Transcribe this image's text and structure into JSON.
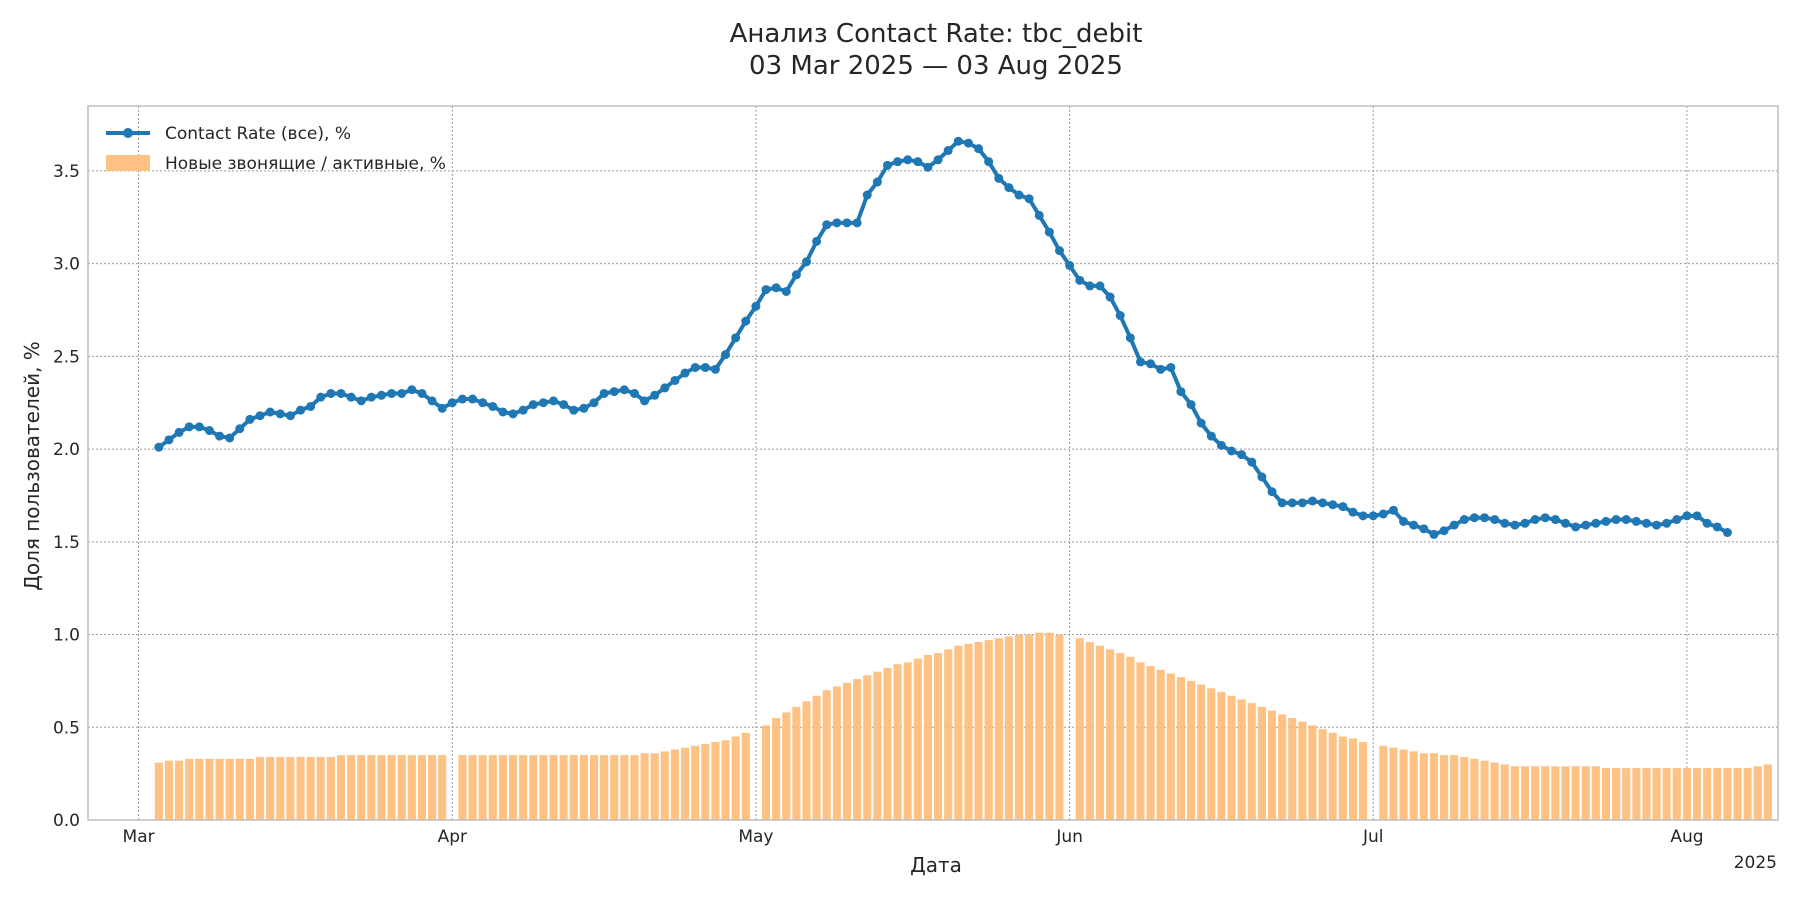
{
  "chart_data": {
    "type": "line",
    "title": "Анализ Contact Rate: tbc_debit",
    "subtitle": "03 Mar 2025 — 03 Aug 2025",
    "xlabel": "Дата",
    "ylabel": "Доля пользователей, %",
    "x_offset_label": "2025",
    "xlim": [
      "2025-02-24",
      "2025-08-10"
    ],
    "ylim": [
      0,
      3.85
    ],
    "y_ticks": [
      "0.0",
      "0.5",
      "1.0",
      "1.5",
      "2.0",
      "2.5",
      "3.0",
      "3.5"
    ],
    "x_ticks": [
      {
        "date": "2025-03-01",
        "label": "Mar"
      },
      {
        "date": "2025-04-01",
        "label": "Apr"
      },
      {
        "date": "2025-05-01",
        "label": "May"
      },
      {
        "date": "2025-06-01",
        "label": "Jun"
      },
      {
        "date": "2025-07-01",
        "label": "Jul"
      },
      {
        "date": "2025-08-01",
        "label": "Aug"
      }
    ],
    "grid": true,
    "legend_position": "top-left",
    "x_start": "2025-03-03",
    "series": [
      {
        "name": "Contact Rate (все), %",
        "kind": "line",
        "color": "#1f77b4",
        "values": [
          2.01,
          2.05,
          2.09,
          2.12,
          2.12,
          2.1,
          2.07,
          2.06,
          2.11,
          2.16,
          2.18,
          2.2,
          2.19,
          2.18,
          2.21,
          2.23,
          2.28,
          2.3,
          2.3,
          2.28,
          2.26,
          2.28,
          2.29,
          2.3,
          2.3,
          2.32,
          2.3,
          2.26,
          2.22,
          2.25,
          2.27,
          2.27,
          2.25,
          2.23,
          2.2,
          2.19,
          2.21,
          2.24,
          2.25,
          2.26,
          2.24,
          2.21,
          2.22,
          2.25,
          2.3,
          2.31,
          2.32,
          2.3,
          2.26,
          2.29,
          2.33,
          2.37,
          2.41,
          2.44,
          2.44,
          2.43,
          2.51,
          2.6,
          2.69,
          2.77,
          2.86,
          2.87,
          2.85,
          2.94,
          3.01,
          3.12,
          3.21,
          3.22,
          3.22,
          3.22,
          3.37,
          3.44,
          3.53,
          3.55,
          3.56,
          3.55,
          3.52,
          3.56,
          3.61,
          3.66,
          3.65,
          3.62,
          3.55,
          3.46,
          3.41,
          3.37,
          3.35,
          3.26,
          3.17,
          3.07,
          2.99,
          2.91,
          2.88,
          2.88,
          2.82,
          2.72,
          2.6,
          2.47,
          2.46,
          2.43,
          2.44,
          2.31,
          2.24,
          2.14,
          2.07,
          2.02,
          1.99,
          1.97,
          1.93,
          1.85,
          1.77,
          1.71,
          1.71,
          1.71,
          1.72,
          1.71,
          1.7,
          1.69,
          1.66,
          1.64,
          1.64,
          1.65,
          1.67,
          1.61,
          1.59,
          1.57,
          1.54,
          1.56,
          1.59,
          1.62,
          1.63,
          1.63,
          1.62,
          1.6,
          1.59,
          1.6,
          1.62,
          1.63,
          1.62,
          1.6,
          1.58,
          1.59,
          1.6,
          1.61,
          1.62,
          1.62,
          1.61,
          1.6,
          1.59,
          1.6,
          1.62,
          1.64,
          1.64,
          1.6,
          1.58,
          1.55
        ]
      },
      {
        "name": "Новые звонящие / активные, %",
        "kind": "bar",
        "color": "#ffbb78",
        "values": [
          0.31,
          0.32,
          0.32,
          0.33,
          0.33,
          0.33,
          0.33,
          0.33,
          0.33,
          0.33,
          0.34,
          0.34,
          0.34,
          0.34,
          0.34,
          0.34,
          0.34,
          0.34,
          0.35,
          0.35,
          0.35,
          0.35,
          0.35,
          0.35,
          0.35,
          0.35,
          0.35,
          0.35,
          0.35,
          0.35,
          0.35,
          0.35,
          0.35,
          0.35,
          0.35,
          0.35,
          0.35,
          0.35,
          0.35,
          0.35,
          0.35,
          0.35,
          0.35,
          0.35,
          0.35,
          0.35,
          0.35,
          0.35,
          0.36,
          0.36,
          0.37,
          0.38,
          0.39,
          0.4,
          0.41,
          0.42,
          0.43,
          0.45,
          0.47,
          0.49,
          0.51,
          0.55,
          0.58,
          0.61,
          0.64,
          0.67,
          0.7,
          0.72,
          0.74,
          0.76,
          0.78,
          0.8,
          0.82,
          0.84,
          0.85,
          0.87,
          0.89,
          0.9,
          0.92,
          0.94,
          0.95,
          0.96,
          0.97,
          0.98,
          0.99,
          1.0,
          1.0,
          1.01,
          1.01,
          1.0,
          0.99,
          0.98,
          0.96,
          0.94,
          0.92,
          0.9,
          0.88,
          0.85,
          0.83,
          0.81,
          0.79,
          0.77,
          0.75,
          0.73,
          0.71,
          0.69,
          0.67,
          0.65,
          0.63,
          0.61,
          0.59,
          0.57,
          0.55,
          0.53,
          0.51,
          0.49,
          0.47,
          0.45,
          0.44,
          0.42,
          0.41,
          0.4,
          0.39,
          0.38,
          0.37,
          0.36,
          0.36,
          0.35,
          0.35,
          0.34,
          0.33,
          0.32,
          0.31,
          0.3,
          0.29,
          0.29,
          0.29,
          0.29,
          0.29,
          0.29,
          0.29,
          0.29,
          0.29,
          0.28,
          0.28,
          0.28,
          0.28,
          0.28,
          0.28,
          0.28,
          0.28,
          0.28,
          0.28,
          0.28,
          0.28,
          0.28,
          0.28,
          0.28,
          0.29,
          0.3
        ]
      }
    ],
    "month_start_gaps": [
      "2025-04-01",
      "2025-05-01",
      "2025-06-01",
      "2025-07-01"
    ]
  }
}
